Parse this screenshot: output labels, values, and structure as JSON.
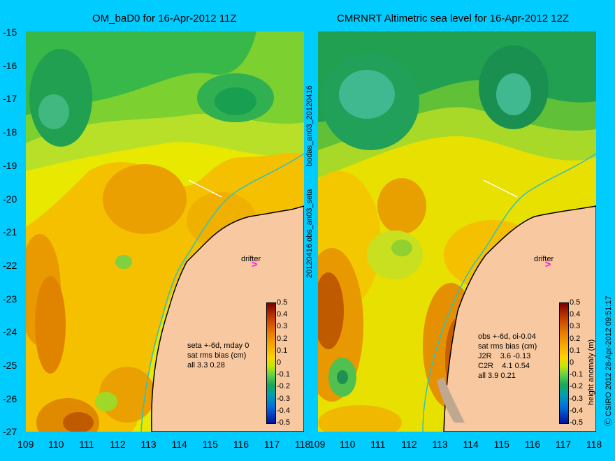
{
  "left": {
    "title": "OM_baD0 for 16-Apr-2012 11Z",
    "stats": "seta +-6d, mday 0\nsat rms bias (cm)\nall 3.3 0.28",
    "drifter": "drifter"
  },
  "right": {
    "title": "CMRNRT Altimetric sea level  for 16-Apr-2012 12Z",
    "stats": "obs +-6d, oi-0.04\nsat rms bias (cm)\nJ2R    3.6 -0.13\nC2R    4.1 0.54\nall 3.9 0.21",
    "drifter": "drifter"
  },
  "middle_labels": {
    "top": "bodas_an03_20120416",
    "bottom": "20120416.obs_an03_seta"
  },
  "y_ticks": [
    "-15",
    "-16",
    "-17",
    "-18",
    "-19",
    "-20",
    "-21",
    "-22",
    "-23",
    "-24",
    "-25",
    "-26",
    "-27"
  ],
  "x_ticks_left": [
    "109",
    "110",
    "111",
    "112",
    "113",
    "114",
    "115",
    "116",
    "117",
    "118"
  ],
  "x_ticks_right": [
    "109",
    "110",
    "111",
    "112",
    "113",
    "114",
    "115",
    "116",
    "117",
    "118"
  ],
  "colorbar": {
    "ticks": [
      "0.5",
      "0.4",
      "0.3",
      "0.2",
      "0.1",
      "0",
      "-0.1",
      "-0.2",
      "-0.3",
      "-0.4",
      "-0.5"
    ],
    "unit": "height anomaly (m)"
  },
  "credit": "Ⓒ CSIRO 2012   28-Apr-2012 09:51:17",
  "colors": {
    "background": "#00ccff",
    "land": "#f8c8a0",
    "coast_line": "#000000",
    "shelf_contour": "#30c0c0",
    "drifter_arrow": "#ff00ff"
  }
}
